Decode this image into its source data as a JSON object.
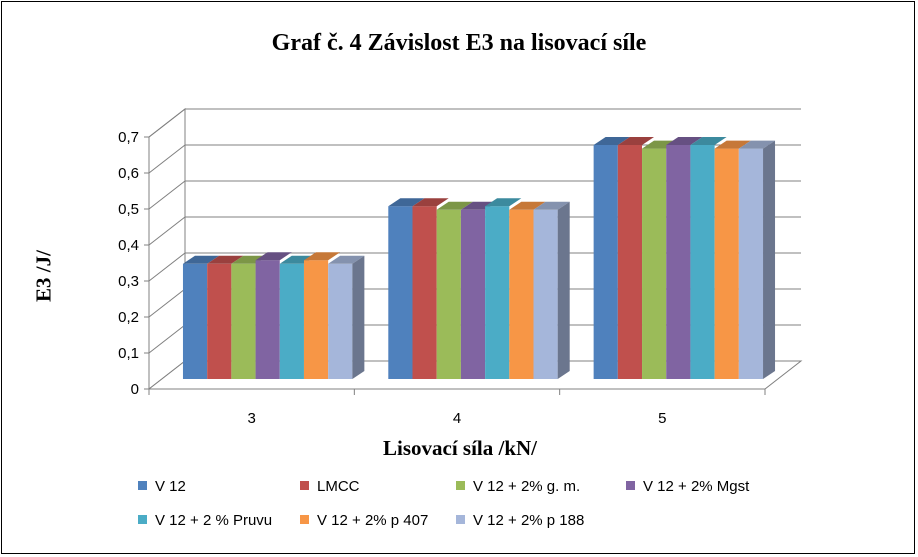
{
  "chart_data": {
    "type": "bar",
    "title": "Graf č. 4 Závislost E3 na lisovací síle",
    "xlabel": "Lisovací síla /kN/",
    "ylabel": "E3 /J/",
    "categories": [
      "3",
      "4",
      "5"
    ],
    "ylim": [
      0,
      0.7
    ],
    "yticks": [
      "0",
      "0,1",
      "0,2",
      "0,3",
      "0,4",
      "0,5",
      "0,6",
      "0,7"
    ],
    "grid": true,
    "legend_position": "bottom",
    "series": [
      {
        "name": "V 12",
        "color": "#4F81BD",
        "values": [
          0.32,
          0.48,
          0.65
        ]
      },
      {
        "name": "LMCC",
        "color": "#C0504D",
        "values": [
          0.32,
          0.48,
          0.65
        ]
      },
      {
        "name": "V 12 + 2% g. m.",
        "color": "#9BBB59",
        "values": [
          0.32,
          0.47,
          0.64
        ]
      },
      {
        "name": "V 12 + 2% Mgst",
        "color": "#8064A2",
        "values": [
          0.33,
          0.47,
          0.65
        ]
      },
      {
        "name": "V 12 + 2 % Pruvu",
        "color": "#4BACC6",
        "values": [
          0.32,
          0.48,
          0.65
        ]
      },
      {
        "name": "V 12 + 2% p 407",
        "color": "#F79646",
        "values": [
          0.33,
          0.47,
          0.64
        ]
      },
      {
        "name": "V 12 + 2% p 188",
        "color": "#A5B6DA",
        "values": [
          0.32,
          0.47,
          0.64
        ]
      }
    ]
  }
}
